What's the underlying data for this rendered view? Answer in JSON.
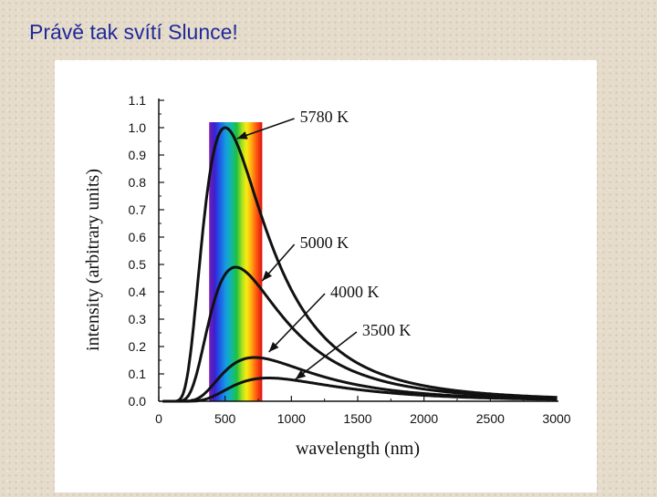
{
  "slide": {
    "title": "Právě tak svítí Slunce!"
  },
  "chart_data": {
    "type": "line",
    "title": "",
    "xlabel": "wavelength (nm)",
    "ylabel": "intensity (arbitrary units)",
    "xlim": [
      0,
      3000
    ],
    "ylim": [
      0,
      1.1
    ],
    "x_ticks": [
      0,
      500,
      1000,
      1500,
      2000,
      2500,
      3000
    ],
    "y_ticks": [
      0.0,
      0.1,
      0.2,
      0.3,
      0.4,
      0.5,
      0.6,
      0.7,
      0.8,
      0.9,
      1.0,
      1.1
    ],
    "visible_band_nm": [
      380,
      780
    ],
    "visible_band_top": 1.02,
    "series": [
      {
        "name": "5780 K",
        "temperature_K": 5780,
        "peak_nm": 501,
        "peak_intensity": 1.0,
        "label_anchor": [
          1050,
          1.02
        ],
        "arrow_to": [
          590,
          0.96
        ]
      },
      {
        "name": "5000 K",
        "temperature_K": 5000,
        "peak_nm": 580,
        "peak_intensity": 0.49,
        "label_anchor": [
          1050,
          0.56
        ],
        "arrow_to": [
          780,
          0.44
        ]
      },
      {
        "name": "4000 K",
        "temperature_K": 4000,
        "peak_nm": 724,
        "peak_intensity": 0.16,
        "label_anchor": [
          1280,
          0.38
        ],
        "arrow_to": [
          830,
          0.18
        ]
      },
      {
        "name": "3500 K",
        "temperature_K": 3500,
        "peak_nm": 828,
        "peak_intensity": 0.085,
        "label_anchor": [
          1520,
          0.24
        ],
        "arrow_to": [
          1030,
          0.08
        ]
      }
    ]
  }
}
